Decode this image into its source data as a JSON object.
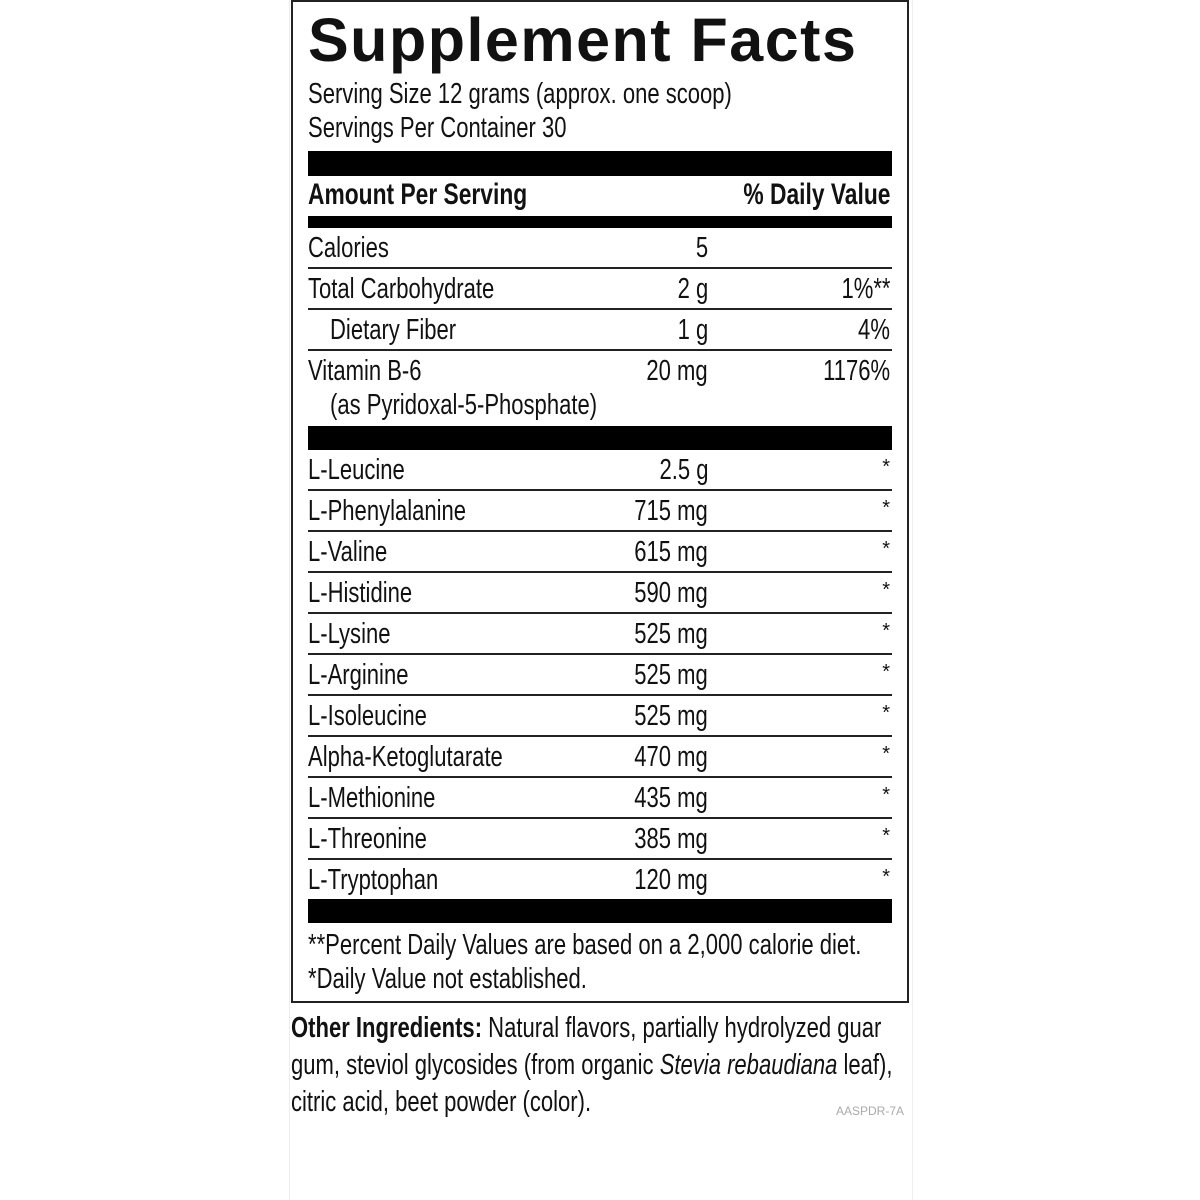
{
  "title": "Supplement Facts",
  "serving_size": "Serving Size 12 grams (approx. one scoop)",
  "servings_per_container": "Servings Per Container 30",
  "header": {
    "amount": "Amount Per Serving",
    "daily_value": "% Daily Value"
  },
  "nutrients": [
    {
      "name": "Calories",
      "amount": "5",
      "dv": ""
    },
    {
      "name": "Total Carbohydrate",
      "amount": "2 g",
      "dv": "1%**"
    },
    {
      "name": "Dietary Fiber",
      "amount": "1 g",
      "dv": "4%",
      "indent": true
    },
    {
      "name": "Vitamin B-6",
      "sub": "(as Pyridoxal-5-Phosphate)",
      "amount": "20 mg",
      "dv": "1176%"
    }
  ],
  "amino_acids": [
    {
      "name": "L-Leucine",
      "amount": "2.5 g",
      "dv": "*"
    },
    {
      "name": "L-Phenylalanine",
      "amount": "715 mg",
      "dv": "*"
    },
    {
      "name": "L-Valine",
      "amount": "615 mg",
      "dv": "*"
    },
    {
      "name": "L-Histidine",
      "amount": "590 mg",
      "dv": "*"
    },
    {
      "name": "L-Lysine",
      "amount": "525 mg",
      "dv": "*"
    },
    {
      "name": "L-Arginine",
      "amount": "525 mg",
      "dv": "*"
    },
    {
      "name": "L-Isoleucine",
      "amount": "525 mg",
      "dv": "*"
    },
    {
      "name": "Alpha-Ketoglutarate",
      "amount": "470 mg",
      "dv": "*"
    },
    {
      "name": "L-Methionine",
      "amount": "435 mg",
      "dv": "*"
    },
    {
      "name": "L-Threonine",
      "amount": "385 mg",
      "dv": "*"
    },
    {
      "name": "L-Tryptophan",
      "amount": "120 mg",
      "dv": "*"
    }
  ],
  "footnotes": [
    "**Percent Daily Values are based on a 2,000 calorie diet.",
    "*Daily Value not established."
  ],
  "other_ingredients": {
    "label": "Other Ingredients:",
    "text_1": " Natural flavors, partially hydrolyzed guar gum, steviol glycosides (from organic ",
    "italic": "Stevia rebaudiana",
    "text_2": " leaf), citric acid, beet powder (color)."
  },
  "code": "AASPDR-7A"
}
